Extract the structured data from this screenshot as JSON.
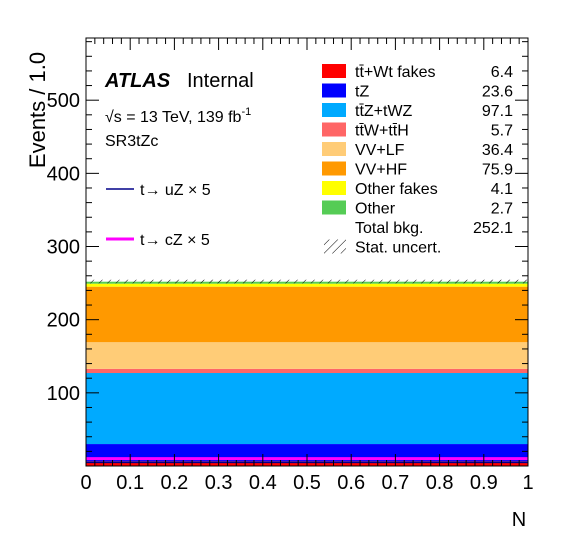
{
  "chart_data": {
    "type": "bar",
    "stacked": true,
    "xlabel": "N",
    "ylabel": "Events / 1.0",
    "xlim": [
      0,
      1
    ],
    "ylim": [
      0,
      585
    ],
    "x_ticks": [
      0,
      0.1,
      0.2,
      0.3,
      0.4,
      0.5,
      0.6,
      0.7,
      0.8,
      0.9,
      1
    ],
    "y_ticks": [
      100,
      200,
      300,
      400,
      500
    ],
    "grid": false,
    "legend_position": "top-right",
    "annotations": {
      "experiment": "ATLAS",
      "experiment_suffix": "Internal",
      "energy_prefix": "√s = 13 TeV, 139 fb",
      "energy_exp": "-1",
      "region": "SR3tZc"
    },
    "series": [
      {
        "name": "tt̄+Wt fakes",
        "value": 6.4,
        "value_label": "6.4",
        "color": "#ff0000"
      },
      {
        "name": "tZ",
        "value": 23.6,
        "value_label": "23.6",
        "color": "#0000ff"
      },
      {
        "name": "tt̄Z+tWZ",
        "value": 97.1,
        "value_label": "97.1",
        "color": "#00aaff"
      },
      {
        "name": "tt̄W+tt̄H",
        "value": 5.7,
        "value_label": "5.7",
        "color": "#ff6666"
      },
      {
        "name": "VV+LF",
        "value": 36.4,
        "value_label": "36.4",
        "color": "#ffcc77"
      },
      {
        "name": "VV+HF",
        "value": 75.9,
        "value_label": "75.9",
        "color": "#ff9900"
      },
      {
        "name": "Other fakes",
        "value": 4.1,
        "value_label": "4.1",
        "color": "#ffff00"
      },
      {
        "name": "Other",
        "value": 2.7,
        "value_label": "2.7",
        "color": "#55cc55"
      }
    ],
    "total": {
      "name": "Total bkg.",
      "value": 252.1,
      "value_label": "252.1"
    },
    "uncertainty_label": "Stat. uncert.",
    "signals": [
      {
        "name": "t→ uZ × 5",
        "value": 5,
        "color": "#000088"
      },
      {
        "name": "t→ cZ × 5",
        "value": 10,
        "color": "#ff00ff"
      }
    ]
  }
}
